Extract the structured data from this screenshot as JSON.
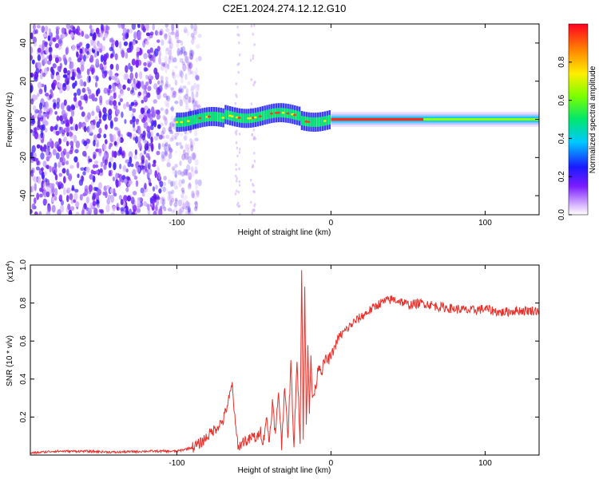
{
  "title": "C2E1.2024.274.12.12.G10",
  "chart_data": [
    {
      "type": "heatmap",
      "name": "spectrogram",
      "xlabel": "Height of straight line (km)",
      "ylabel": "Frequency (Hz)",
      "xlim": [
        -195,
        135
      ],
      "ylim": [
        -50,
        50
      ],
      "xticks": [
        -100,
        0,
        100
      ],
      "xtick_labels": [
        "-100",
        "0",
        "100"
      ],
      "yticks": [
        -40,
        -20,
        0,
        20,
        40
      ],
      "ytick_labels": [
        "-40",
        "-20",
        "0",
        "20",
        "40"
      ],
      "colorbar": {
        "label": "Normalized spectral amplitude",
        "range": [
          0,
          1
        ],
        "ticks": [
          0,
          0.2,
          0.4,
          0.6,
          0.8
        ],
        "tick_labels": [
          "0.0",
          "0.2",
          "0.4",
          "0.6",
          "0.8"
        ]
      },
      "description_regions": [
        {
          "x_from": -195,
          "x_to": -90,
          "freq_from": -50,
          "freq_to": 50,
          "amplitude": 0.15
        },
        {
          "x_from": -100,
          "x_to": 0,
          "freq_from": -5,
          "freq_to": 6,
          "amplitude": 0.75
        },
        {
          "x_from": 0,
          "x_to": 135,
          "freq_from": -2,
          "freq_to": 2,
          "amplitude": 0.55
        }
      ]
    },
    {
      "type": "line",
      "name": "snr",
      "xlabel": "Height of straight line (km)",
      "ylabel": "SNR (10 * v/v)",
      "y_scale_label": "(x10",
      "y_scale_exponent": "4",
      "xlim": [
        -195,
        135
      ],
      "ylim": [
        0,
        1.0
      ],
      "xticks": [
        -100,
        0,
        100
      ],
      "xtick_labels": [
        "-100",
        "0",
        "100"
      ],
      "yticks": [
        0.2,
        0.4,
        0.6,
        0.8,
        1.0
      ],
      "ytick_labels": [
        "0.2",
        "0.4",
        "0.6",
        "0.8",
        "1.0"
      ],
      "series": [
        {
          "name": "SNR",
          "color": "#e8302a",
          "x": [
            -195,
            -180,
            -160,
            -140,
            -120,
            -100,
            -95,
            -90,
            -85,
            -80,
            -75,
            -70,
            -66,
            -64,
            -62,
            -60,
            -58,
            -56,
            -54,
            -52,
            -50,
            -48,
            -46,
            -44,
            -42,
            -40,
            -38,
            -36,
            -34,
            -32,
            -30,
            -28,
            -26,
            -24,
            -22,
            -20,
            -19,
            -18,
            -17,
            -16,
            -15,
            -14,
            -13,
            -12,
            -10,
            -8,
            -6,
            -4,
            -2,
            0,
            5,
            10,
            15,
            20,
            25,
            30,
            35,
            40,
            45,
            50,
            60,
            70,
            80,
            90,
            100,
            110,
            120,
            135
          ],
          "values": [
            0.01,
            0.02,
            0.02,
            0.015,
            0.02,
            0.02,
            0.03,
            0.04,
            0.06,
            0.1,
            0.14,
            0.18,
            0.3,
            0.37,
            0.15,
            0.04,
            0.06,
            0.08,
            0.07,
            0.09,
            0.1,
            0.08,
            0.14,
            0.06,
            0.2,
            0.07,
            0.28,
            0.1,
            0.34,
            0.05,
            0.38,
            0.08,
            0.48,
            0.04,
            0.52,
            0.06,
            1.0,
            0.1,
            0.88,
            0.15,
            0.6,
            0.24,
            0.5,
            0.3,
            0.35,
            0.48,
            0.44,
            0.5,
            0.5,
            0.52,
            0.62,
            0.66,
            0.7,
            0.73,
            0.76,
            0.79,
            0.81,
            0.82,
            0.81,
            0.79,
            0.8,
            0.78,
            0.77,
            0.76,
            0.77,
            0.75,
            0.76,
            0.76
          ]
        }
      ]
    }
  ]
}
